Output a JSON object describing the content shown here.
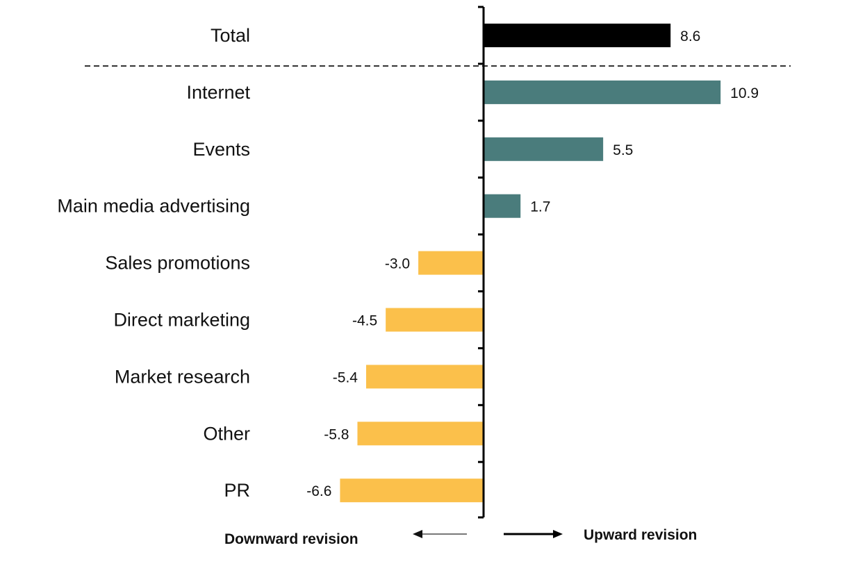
{
  "chart_data": {
    "type": "bar",
    "orientation": "horizontal",
    "categories": [
      "Total",
      "Internet",
      "Events",
      "Main media advertising",
      "Sales promotions",
      "Direct marketing",
      "Market research",
      "Other",
      "PR"
    ],
    "values": [
      8.6,
      10.9,
      5.5,
      1.7,
      -3.0,
      -4.5,
      -5.4,
      -5.8,
      -6.6
    ],
    "value_labels": [
      "8.6",
      "10.9",
      "5.5",
      "1.7",
      "-3.0",
      "-4.5",
      "-5.4",
      "-5.8",
      "-6.6"
    ],
    "colors": {
      "total": "#000000",
      "positive": "#4a7c7c",
      "negative": "#fbc04b"
    },
    "separator_after": "Total",
    "xlim": [
      -7,
      13
    ],
    "grid": false,
    "legend": "none",
    "footer": {
      "left": "Downward revision",
      "right": "Upward revision"
    }
  }
}
